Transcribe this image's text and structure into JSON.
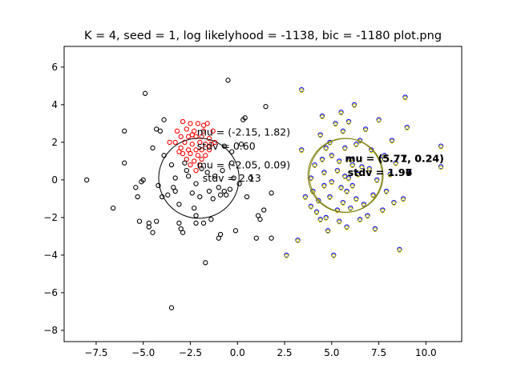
{
  "chart_data": {
    "type": "scatter",
    "title": "K = 4, seed = 1,  log likelyhood = -1138, bic = -1180 plot.png",
    "xlim": [
      -9.2,
      11.9
    ],
    "ylim": [
      -8.6,
      7.1
    ],
    "xticks": [
      -7.5,
      -5.0,
      -2.5,
      0.0,
      2.5,
      5.0,
      7.5,
      10.0
    ],
    "xtick_labels": [
      "−7.5",
      "−5.0",
      "−2.5",
      "0.0",
      "2.5",
      "5.0",
      "7.5",
      "10.0"
    ],
    "yticks": [
      -8,
      -6,
      -4,
      -2,
      0,
      2,
      4,
      6
    ],
    "ytick_labels": [
      "−8",
      "−6",
      "−4",
      "−2",
      "0",
      "2",
      "4",
      "6"
    ],
    "grid": false,
    "colors": {
      "black": "#000000",
      "red": "#ff0000",
      "blue": "#0000ff",
      "yellow": "#c8c800",
      "olive": "#80800f"
    },
    "components": [
      {
        "mu": [
          -2.15,
          1.82
        ],
        "stdv": 0.6,
        "color": "#ff0000",
        "mu_label": "mu = (-2.15, 1.82)",
        "stdv_label": "stdv = 0.60"
      },
      {
        "mu": [
          -2.05,
          0.09
        ],
        "stdv": 2.13,
        "color": "#000000",
        "mu_label": "mu = (-2.05, 0.09)",
        "stdv_label": "stdv = 2.13"
      },
      {
        "mu": [
          5.71,
          0.24
        ],
        "stdv": 1.97,
        "color": "#0000ff",
        "mu_label": "mu = (5.71, 0.24)",
        "stdv_label": "stdv = 1.97"
      },
      {
        "mu": [
          5.77,
          0.24
        ],
        "stdv": 1.96,
        "color": "#c8c800",
        "mu_label": "mu = (5.77, 0.24)",
        "stdv_label": "stdv = 1.96"
      }
    ],
    "series": [
      {
        "color": "#ff0000",
        "points": [
          [
            -2.9,
            3.1
          ],
          [
            -2.5,
            3.0
          ],
          [
            -2.1,
            3.0
          ],
          [
            -1.6,
            3.0
          ],
          [
            -3.2,
            2.6
          ],
          [
            -2.7,
            2.7
          ],
          [
            -2.3,
            2.6
          ],
          [
            -1.8,
            2.6
          ],
          [
            -1.3,
            2.6
          ],
          [
            -3.0,
            2.3
          ],
          [
            -2.6,
            2.3
          ],
          [
            -2.2,
            2.3
          ],
          [
            -1.9,
            2.3
          ],
          [
            -1.5,
            2.2
          ],
          [
            -3.3,
            2.0
          ],
          [
            -2.8,
            2.0
          ],
          [
            -2.4,
            1.9
          ],
          [
            -2.0,
            2.0
          ],
          [
            -1.7,
            1.9
          ],
          [
            -1.4,
            1.9
          ],
          [
            -3.0,
            1.7
          ],
          [
            -2.6,
            1.6
          ],
          [
            -2.2,
            1.6
          ],
          [
            -1.9,
            1.6
          ],
          [
            -1.5,
            1.6
          ],
          [
            -2.9,
            1.4
          ],
          [
            -2.5,
            1.4
          ],
          [
            -2.1,
            1.3
          ],
          [
            -1.7,
            1.3
          ],
          [
            -2.7,
            1.1
          ],
          [
            -2.3,
            1.0
          ],
          [
            -1.9,
            1.1
          ],
          [
            -2.5,
            0.8
          ],
          [
            -2.0,
            0.8
          ],
          [
            -2.2,
            0.5
          ],
          [
            -3.1,
            1.5
          ],
          [
            -1.2,
            2.0
          ],
          [
            -3.6,
            2.0
          ],
          [
            -1.8,
            2.9
          ],
          [
            -2.4,
            2.4
          ]
        ]
      },
      {
        "color": "#000000",
        "points": [
          [
            -8.0,
            0.0
          ],
          [
            -6.6,
            -1.5
          ],
          [
            -6.0,
            2.6
          ],
          [
            -6.0,
            0.9
          ],
          [
            -5.4,
            -0.4
          ],
          [
            -5.3,
            -0.9
          ],
          [
            -5.1,
            -0.1
          ],
          [
            -5.0,
            0.0
          ],
          [
            -5.2,
            -2.2
          ],
          [
            -4.9,
            4.6
          ],
          [
            -4.7,
            -2.3
          ],
          [
            -4.7,
            -2.5
          ],
          [
            -4.5,
            -2.8
          ],
          [
            -4.3,
            -2.2
          ],
          [
            -4.5,
            1.7
          ],
          [
            -4.3,
            2.7
          ],
          [
            -4.1,
            2.6
          ],
          [
            -4.2,
            -0.3
          ],
          [
            -4.0,
            -0.9
          ],
          [
            -3.9,
            3.2
          ],
          [
            -3.9,
            1.3
          ],
          [
            -3.7,
            -0.8
          ],
          [
            -3.5,
            -6.8
          ],
          [
            -3.4,
            -0.4
          ],
          [
            -3.3,
            0.1
          ],
          [
            -3.3,
            -0.6
          ],
          [
            -3.1,
            -2.3
          ],
          [
            -3.1,
            -1.3
          ],
          [
            -3.0,
            -2.6
          ],
          [
            -2.9,
            -2.8
          ],
          [
            -2.8,
            0.9
          ],
          [
            -2.7,
            0.5
          ],
          [
            -2.6,
            0.2
          ],
          [
            -2.4,
            -0.7
          ],
          [
            -2.3,
            -1.5
          ],
          [
            -2.2,
            -0.2
          ],
          [
            -2.2,
            -1.9
          ],
          [
            -2.2,
            -2.3
          ],
          [
            -2.0,
            -0.9
          ],
          [
            -1.8,
            -2.3
          ],
          [
            -1.7,
            -4.4
          ],
          [
            -1.6,
            0.4
          ],
          [
            -1.5,
            -0.6
          ],
          [
            -1.4,
            -2.1
          ],
          [
            -1.3,
            -1.0
          ],
          [
            -1.2,
            0.2
          ],
          [
            -1.0,
            -3.1
          ],
          [
            -1.0,
            -0.4
          ],
          [
            -0.9,
            -2.9
          ],
          [
            -0.9,
            -0.8
          ],
          [
            -0.8,
            0.5
          ],
          [
            -0.7,
            -0.6
          ],
          [
            -0.6,
            -0.8
          ],
          [
            -0.5,
            5.3
          ],
          [
            -0.4,
            -0.5
          ],
          [
            -0.3,
            1.5
          ],
          [
            -0.2,
            0.1
          ],
          [
            -0.1,
            -2.7
          ],
          [
            0.2,
            1.9
          ],
          [
            0.3,
            3.2
          ],
          [
            0.4,
            3.3
          ],
          [
            0.5,
            -0.9
          ],
          [
            0.7,
            0.1
          ],
          [
            1.0,
            -3.1
          ],
          [
            1.1,
            -1.9
          ],
          [
            1.2,
            -2.1
          ],
          [
            1.4,
            -1.6
          ],
          [
            1.5,
            3.9
          ],
          [
            1.8,
            -3.1
          ],
          [
            1.8,
            -0.7
          ],
          [
            -1.9,
            0.6
          ],
          [
            -0.7,
            1.8
          ],
          [
            -3.5,
            0.8
          ],
          [
            -0.3,
            0.9
          ],
          [
            0.1,
            -0.2
          ]
        ]
      },
      {
        "color": "#0000ff",
        "points": [
          [
            2.6,
            -4.0
          ],
          [
            3.2,
            -3.2
          ],
          [
            3.4,
            4.8
          ],
          [
            3.4,
            1.6
          ],
          [
            3.6,
            -0.9
          ],
          [
            3.9,
            -1.4
          ],
          [
            3.9,
            0.1
          ],
          [
            4.0,
            -0.6
          ],
          [
            4.1,
            0.8
          ],
          [
            4.2,
            -1.7
          ],
          [
            4.3,
            -1.1
          ],
          [
            4.4,
            2.4
          ],
          [
            4.4,
            -2.1
          ],
          [
            4.5,
            3.4
          ],
          [
            4.5,
            1.1
          ],
          [
            4.6,
            -0.3
          ],
          [
            4.6,
            0.4
          ],
          [
            4.7,
            -2.0
          ],
          [
            4.7,
            1.7
          ],
          [
            4.8,
            -2.7
          ],
          [
            4.9,
            2.0
          ],
          [
            4.9,
            -0.9
          ],
          [
            5.0,
            1.3
          ],
          [
            5.0,
            -0.1
          ],
          [
            5.1,
            -4.0
          ],
          [
            5.2,
            3.0
          ],
          [
            5.3,
            0.5
          ],
          [
            5.3,
            -1.6
          ],
          [
            5.4,
            -2.2
          ],
          [
            5.4,
            1.0
          ],
          [
            5.5,
            3.6
          ],
          [
            5.5,
            -0.4
          ],
          [
            5.6,
            -1.2
          ],
          [
            5.6,
            2.6
          ],
          [
            5.7,
            1.7
          ],
          [
            5.7,
            0.2
          ],
          [
            5.8,
            -2.5
          ],
          [
            5.8,
            -0.6
          ],
          [
            5.9,
            0.1
          ],
          [
            5.9,
            3.1
          ],
          [
            6.0,
            1.1
          ],
          [
            6.0,
            -1.5
          ],
          [
            6.1,
            0.8
          ],
          [
            6.1,
            -0.3
          ],
          [
            6.2,
            4.0
          ],
          [
            6.3,
            1.9
          ],
          [
            6.3,
            -1.0
          ],
          [
            6.4,
            0.3
          ],
          [
            6.5,
            2.1
          ],
          [
            6.5,
            -2.1
          ],
          [
            6.6,
            0.7
          ],
          [
            6.7,
            -1.3
          ],
          [
            6.8,
            2.7
          ],
          [
            6.9,
            -1.9
          ],
          [
            7.0,
            0.6
          ],
          [
            7.1,
            1.6
          ],
          [
            7.2,
            -0.8
          ],
          [
            7.3,
            -2.6
          ],
          [
            7.4,
            0.0
          ],
          [
            7.5,
            3.2
          ],
          [
            7.6,
            1.1
          ],
          [
            7.7,
            -1.6
          ],
          [
            7.8,
            1.3
          ],
          [
            7.9,
            -0.6
          ],
          [
            8.1,
            0.3
          ],
          [
            8.2,
            2.1
          ],
          [
            8.3,
            -1.2
          ],
          [
            8.4,
            0.9
          ],
          [
            8.6,
            -3.7
          ],
          [
            8.8,
            -1.0
          ],
          [
            8.9,
            4.4
          ],
          [
            9.0,
            2.8
          ],
          [
            9.1,
            0.4
          ],
          [
            10.8,
            1.8
          ],
          [
            10.8,
            0.7
          ]
        ]
      }
    ]
  }
}
